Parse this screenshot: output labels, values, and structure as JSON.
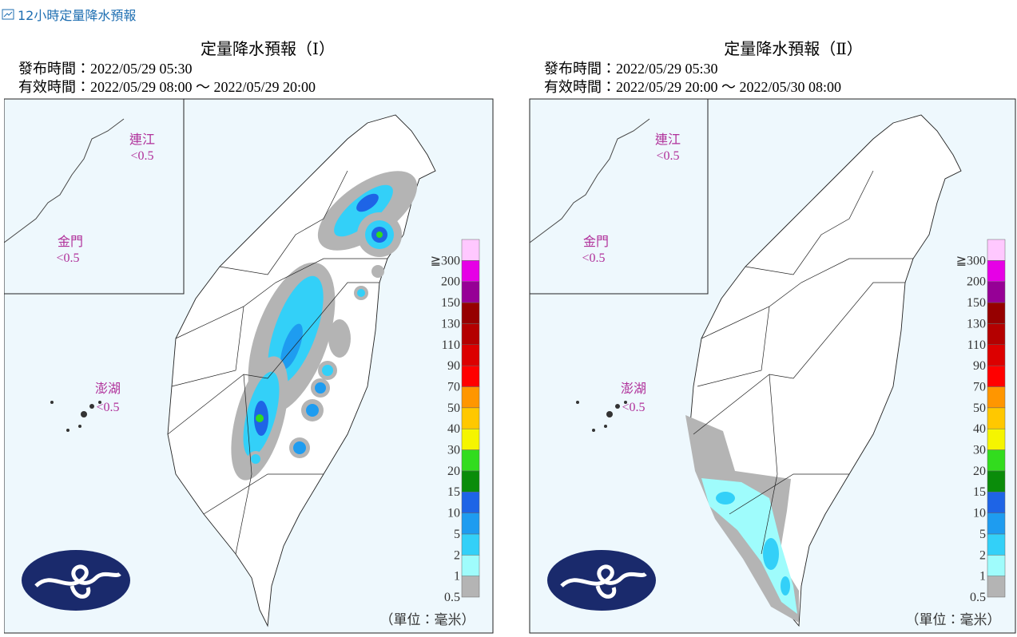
{
  "header": {
    "title": "12小時定量降水預報"
  },
  "panels": [
    {
      "title": "定量降水預報（Ⅰ）",
      "issued": "發布時間：2022/05/29 05:30",
      "valid": "有效時間：2022/05/29 08:00 ～ 2022/05/29 20:00",
      "places": [
        {
          "name": "連江",
          "value": "<0.5"
        },
        {
          "name": "金門",
          "value": "<0.5"
        },
        {
          "name": "澎湖",
          "value": "<0.5"
        }
      ],
      "legend": {
        "labels": [
          "0.5",
          "1",
          "2",
          "5",
          "10",
          "15",
          "20",
          "30",
          "40",
          "50",
          "70",
          "90",
          "110",
          "130",
          "150",
          "200",
          "≧300"
        ],
        "colors": [
          "#b4b4b4",
          "#9ffcfc",
          "#33d0f8",
          "#1e9cf0",
          "#1e64e6",
          "#0a8c0a",
          "#32dc1e",
          "#f5f500",
          "#ffc800",
          "#ff9600",
          "#ff0000",
          "#dc0000",
          "#b40000",
          "#960000",
          "#960096",
          "#e600e6",
          "#ffc8ff"
        ]
      },
      "unit": "（單位：毫米）"
    },
    {
      "title": "定量降水預報（Ⅱ）",
      "issued": "發布時間：2022/05/29 05:30",
      "valid": "有效時間：2022/05/29 20:00 ～ 2022/05/30 08:00",
      "places": [
        {
          "name": "連江",
          "value": "<0.5"
        },
        {
          "name": "金門",
          "value": "<0.5"
        },
        {
          "name": "澎湖",
          "value": "<0.5"
        }
      ],
      "legend": {
        "labels": [
          "0.5",
          "1",
          "2",
          "5",
          "10",
          "15",
          "20",
          "30",
          "40",
          "50",
          "70",
          "90",
          "110",
          "130",
          "150",
          "200",
          "≧300"
        ],
        "colors": [
          "#b4b4b4",
          "#9ffcfc",
          "#33d0f8",
          "#1e9cf0",
          "#1e64e6",
          "#0a8c0a",
          "#32dc1e",
          "#f5f500",
          "#ffc800",
          "#ff9600",
          "#ff0000",
          "#dc0000",
          "#b40000",
          "#960000",
          "#960096",
          "#e600e6",
          "#ffc8ff"
        ]
      },
      "unit": "（單位：毫米）"
    }
  ]
}
